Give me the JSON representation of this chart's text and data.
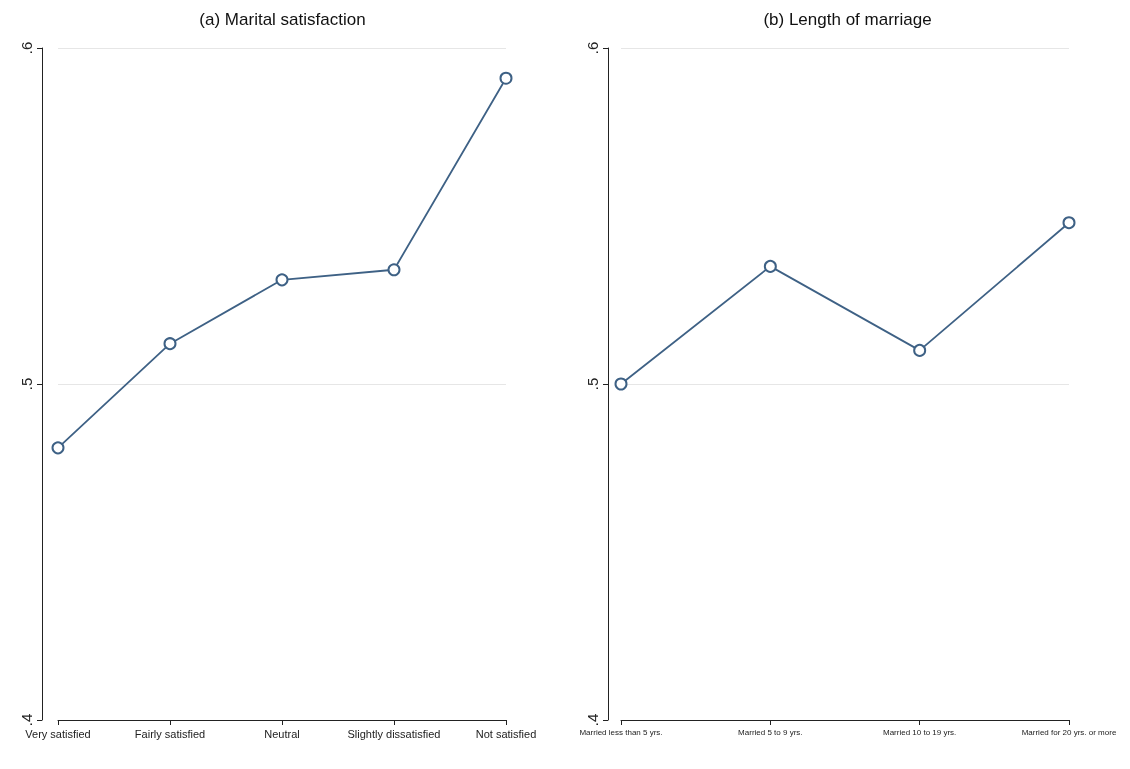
{
  "chart_data": [
    {
      "type": "line",
      "title": "(a) Marital satisfaction",
      "categories": [
        "Very satisfied",
        "Fairly satisfied",
        "Neutral",
        "Slightly dissatisfied",
        "Not satisfied"
      ],
      "series": [
        {
          "color": "#3e6185",
          "values": [
            0.481,
            0.512,
            0.531,
            0.534,
            0.591
          ]
        }
      ],
      "ylim": [
        0.4,
        0.6
      ],
      "yticks": [
        {
          "value": 0.4,
          "label": ".4"
        },
        {
          "value": 0.5,
          "label": ".5"
        },
        {
          "value": 0.6,
          "label": ".6"
        }
      ],
      "grid": "y",
      "marker": "circle"
    },
    {
      "type": "line",
      "title": "(b) Length of marriage",
      "categories": [
        "Married less than 5 yrs.",
        "Married 5 to 9 yrs.",
        "Married 10 to 19 yrs.",
        "Married for 20 yrs. or more"
      ],
      "series": [
        {
          "color": "#3e6185",
          "values": [
            0.5,
            0.535,
            0.51,
            0.548
          ]
        }
      ],
      "ylim": [
        0.4,
        0.6
      ],
      "yticks": [
        {
          "value": 0.4,
          "label": ".4"
        },
        {
          "value": 0.5,
          "label": ".5"
        },
        {
          "value": 0.6,
          "label": ".6"
        }
      ],
      "grid": "y",
      "marker": "circle"
    }
  ]
}
